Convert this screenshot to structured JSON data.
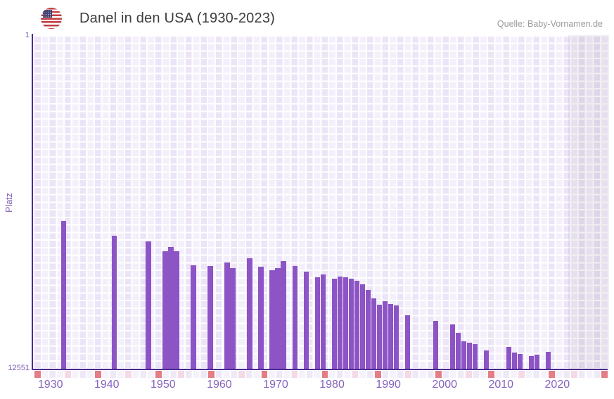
{
  "header": {
    "title": "Danel in den USA (1930-2023)",
    "flag_icon": "us-flag-icon",
    "source": "Quelle: Baby-Vornamen.de"
  },
  "y_axis": {
    "label": "Platz",
    "ticks": [
      "1",
      "12551"
    ]
  },
  "x_axis": {
    "ticks": [
      "1930",
      "1940",
      "1950",
      "1960",
      "1970",
      "1980",
      "1990",
      "2000",
      "2010",
      "2020"
    ]
  },
  "chart_data": {
    "type": "bar",
    "title": "Danel in den USA (1930-2023)",
    "xlabel": "",
    "ylabel": "Platz",
    "y_axis_inverted": true,
    "ylim": [
      1,
      12551
    ],
    "x_visible_range": [
      1927,
      2029
    ],
    "grid": true,
    "legend": false,
    "bars": [
      {
        "year": 1932,
        "rank": 6980
      },
      {
        "year": 1941,
        "rank": 7530
      },
      {
        "year": 1947,
        "rank": 7740
      },
      {
        "year": 1950,
        "rank": 8100
      },
      {
        "year": 1951,
        "rank": 7950
      },
      {
        "year": 1952,
        "rank": 8100
      },
      {
        "year": 1955,
        "rank": 8630
      },
      {
        "year": 1958,
        "rank": 8660
      },
      {
        "year": 1961,
        "rank": 8540
      },
      {
        "year": 1962,
        "rank": 8740
      },
      {
        "year": 1965,
        "rank": 8370
      },
      {
        "year": 1967,
        "rank": 8690
      },
      {
        "year": 1969,
        "rank": 8820
      },
      {
        "year": 1970,
        "rank": 8750
      },
      {
        "year": 1971,
        "rank": 8470
      },
      {
        "year": 1973,
        "rank": 8670
      },
      {
        "year": 1975,
        "rank": 8870
      },
      {
        "year": 1977,
        "rank": 9080
      },
      {
        "year": 1978,
        "rank": 8990
      },
      {
        "year": 1980,
        "rank": 9130
      },
      {
        "year": 1981,
        "rank": 9060
      },
      {
        "year": 1982,
        "rank": 9080
      },
      {
        "year": 1983,
        "rank": 9130
      },
      {
        "year": 1984,
        "rank": 9220
      },
      {
        "year": 1985,
        "rank": 9350
      },
      {
        "year": 1986,
        "rank": 9570
      },
      {
        "year": 1987,
        "rank": 9880
      },
      {
        "year": 1988,
        "rank": 10130
      },
      {
        "year": 1989,
        "rank": 9990
      },
      {
        "year": 1990,
        "rank": 10100
      },
      {
        "year": 1991,
        "rank": 10150
      },
      {
        "year": 1993,
        "rank": 10520
      },
      {
        "year": 1998,
        "rank": 10740
      },
      {
        "year": 2001,
        "rank": 10850
      },
      {
        "year": 2002,
        "rank": 11170
      },
      {
        "year": 2003,
        "rank": 11500
      },
      {
        "year": 2004,
        "rank": 11550
      },
      {
        "year": 2005,
        "rank": 11600
      },
      {
        "year": 2007,
        "rank": 11840
      },
      {
        "year": 2011,
        "rank": 11710
      },
      {
        "year": 2012,
        "rank": 11910
      },
      {
        "year": 2013,
        "rank": 11960
      },
      {
        "year": 2015,
        "rank": 12040
      },
      {
        "year": 2016,
        "rank": 11990
      },
      {
        "year": 2018,
        "rank": 11880
      }
    ],
    "no_data_shaded_from_year": 2022,
    "timeline_strip": {
      "red_years": [
        1938,
        1948,
        1958,
        1968,
        1978,
        1988,
        1998,
        2008,
        2018
      ],
      "pink_years": [
        1933,
        1943,
        1953,
        1963,
        1973,
        1983,
        1993,
        2003,
        2013,
        2023
      ],
      "edge_marks": "red"
    }
  },
  "colors": {
    "bar": "#8c54c5",
    "axis_line": "#4c2b92",
    "tick_label": "#7d5bb5",
    "x_tick_label": "#8463be",
    "grid_cell_dark": "#ece4f7",
    "grid_cell_light": "#f4f0fb",
    "shade_overlay": "rgba(104,92,130,0.10)",
    "strip_red": "#e2707a",
    "strip_pink": "#f3d7e2",
    "title_text": "#3d3d3d",
    "source_text": "#9a9a9a"
  }
}
